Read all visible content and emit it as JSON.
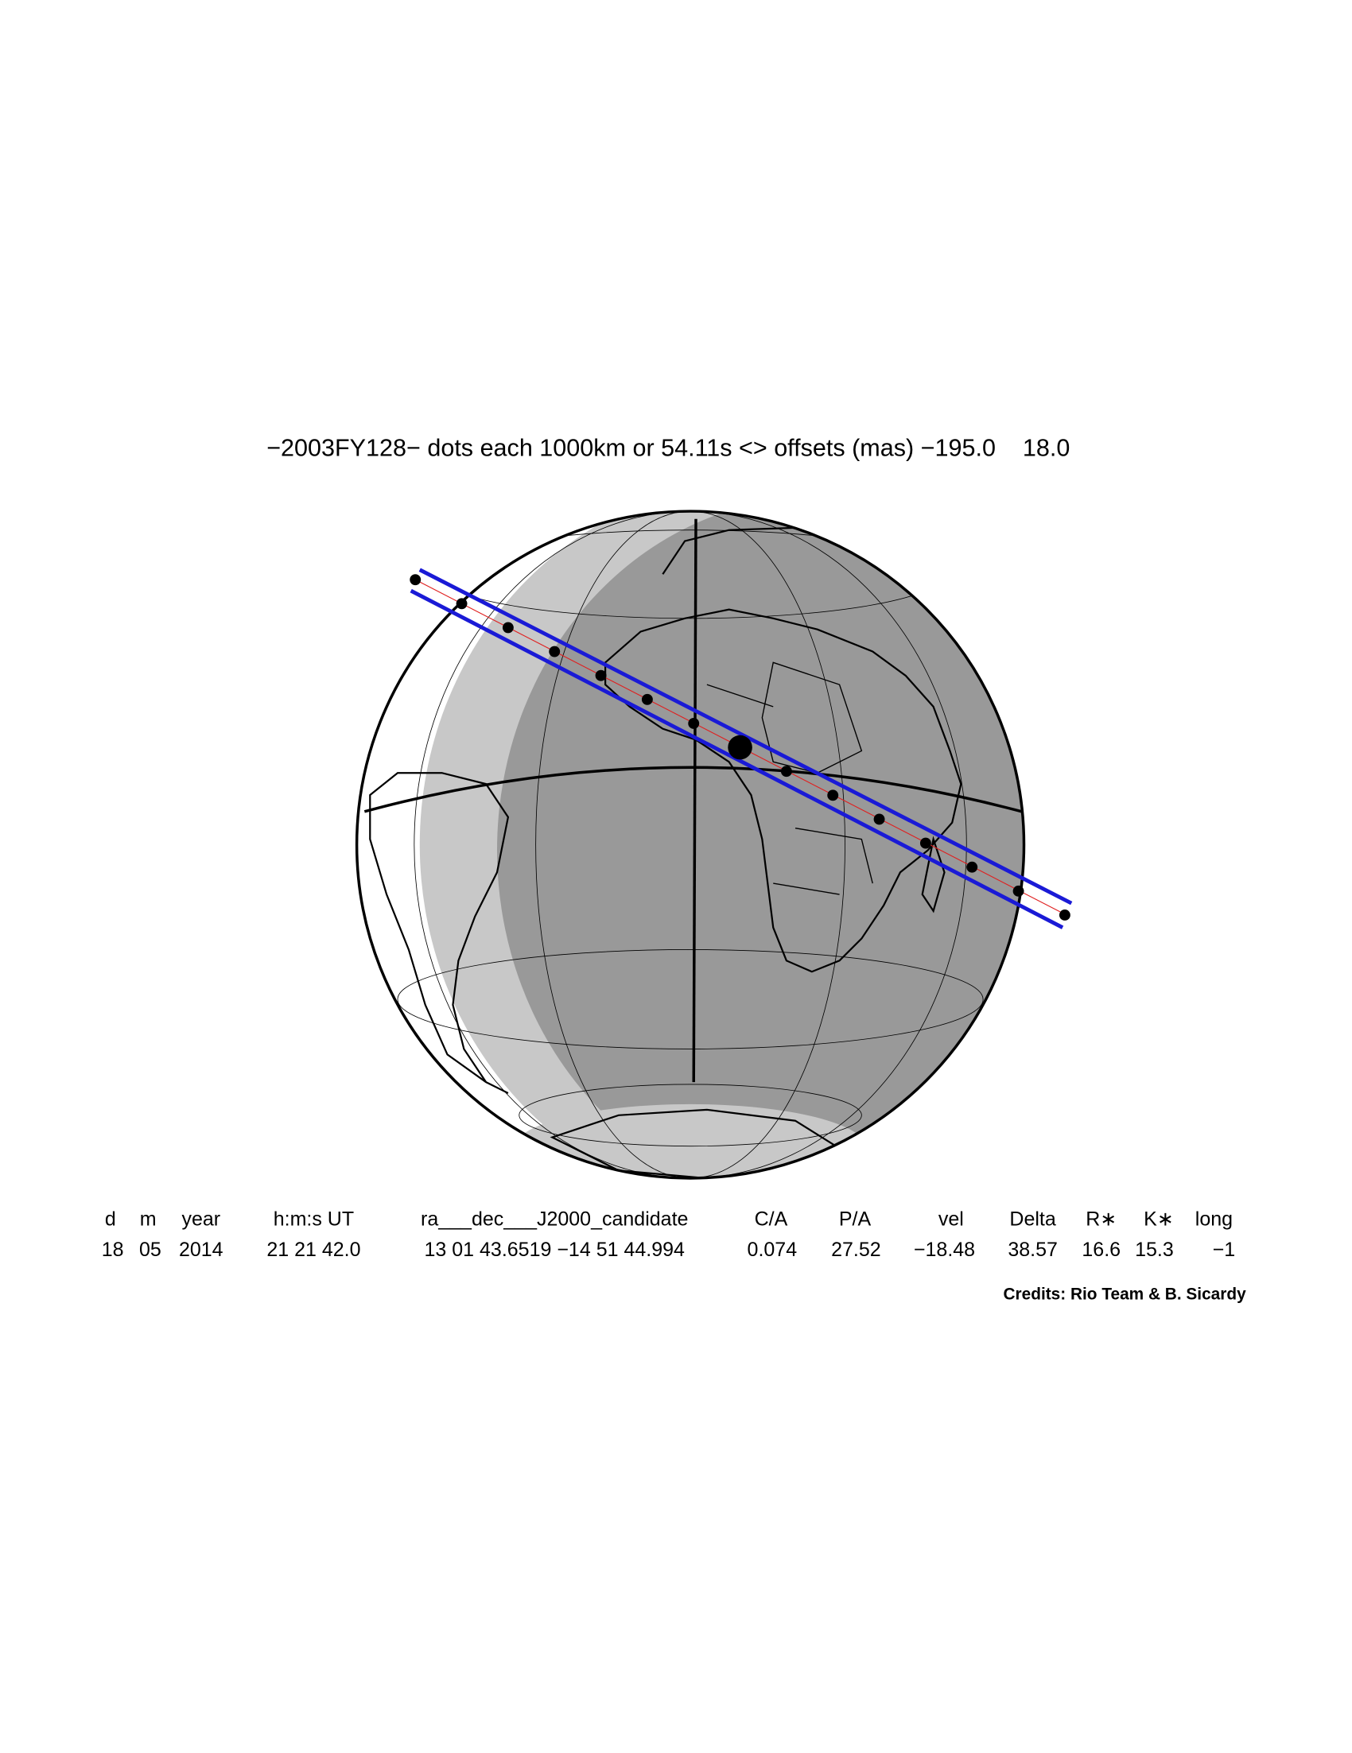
{
  "header": {
    "title": "−2003FY128− dots each 1000km or 54.11s <> offsets (mas) −195.0    18.0"
  },
  "table": {
    "columns": [
      "d",
      "m",
      "year",
      "h:m:s UT",
      "ra___dec___J2000_candidate",
      "C/A",
      "P/A",
      "vel",
      "Delta",
      "R∗",
      "K∗",
      "long"
    ],
    "rows": [
      [
        "18",
        "05",
        "2014",
        "21 21 42.0",
        "13 01 43.6519 −14 51 44.994",
        "0.074",
        "27.52",
        "−18.48",
        "38.57",
        "16.6",
        "15.3",
        "−1"
      ]
    ]
  },
  "credits": "Credits: Rio Team & B. Sicardy"
}
